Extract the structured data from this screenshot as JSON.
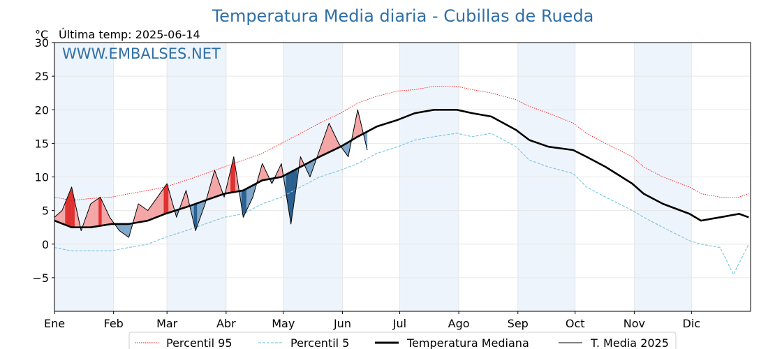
{
  "chart_data": {
    "type": "line",
    "title": "Temperatura Media diaria - Cubillas de Rueda",
    "unit_label": "°C",
    "subtitle": "Última temp: 2025-06-14",
    "watermark": "WWW.EMBALSES.NET",
    "ylim": [
      -10,
      30
    ],
    "yticks": [
      -5,
      0,
      5,
      10,
      15,
      20,
      25,
      30
    ],
    "ytick_labels": [
      "−5",
      "0",
      "5",
      "10",
      "15",
      "20",
      "25",
      "30"
    ],
    "month_labels": [
      "Ene",
      "Feb",
      "Mar",
      "Abr",
      "May",
      "Jun",
      "Jul",
      "Ago",
      "Sep",
      "Oct",
      "Nov",
      "Dic"
    ],
    "month_start_days": [
      1,
      32,
      60,
      91,
      121,
      152,
      182,
      213,
      244,
      274,
      305,
      335
    ],
    "grid": true,
    "legend_position": "bottom",
    "colors": {
      "p95": "#ff0000",
      "p5": "#7ec8e3",
      "median": "#000000",
      "current": "#000000",
      "above_fill": "#f4a6a6",
      "above_strong": "#e03030",
      "below_fill": "#7fa7c9",
      "below_strong": "#2a5f8f",
      "month_band": "#eef4fb",
      "title": "#2f6fa7"
    },
    "series": [
      {
        "name": "Percentil 95",
        "style": "dotted-red",
        "x": [
          1,
          10,
          20,
          31,
          40,
          50,
          59,
          70,
          80,
          90,
          100,
          110,
          120,
          130,
          140,
          151,
          160,
          170,
          181,
          190,
          200,
          212,
          220,
          230,
          243,
          250,
          260,
          273,
          280,
          290,
          304,
          310,
          320,
          334,
          340,
          350,
          360,
          365
        ],
        "y": [
          7,
          6.5,
          6.8,
          7,
          7.5,
          8,
          8.5,
          9.5,
          10.5,
          11.5,
          12.5,
          13.5,
          15,
          16.5,
          18,
          19.5,
          21,
          22,
          22.8,
          23,
          23.5,
          23.5,
          23,
          22.5,
          21.5,
          20.5,
          19.5,
          18,
          16.5,
          15,
          13,
          11.5,
          10,
          8.5,
          7.5,
          7,
          7,
          7.5
        ]
      },
      {
        "name": "Percentil 5",
        "style": "dashed-lightblue",
        "x": [
          1,
          10,
          20,
          31,
          40,
          50,
          59,
          70,
          80,
          90,
          100,
          110,
          120,
          130,
          140,
          151,
          160,
          170,
          181,
          190,
          200,
          212,
          220,
          230,
          243,
          250,
          260,
          273,
          280,
          290,
          304,
          310,
          320,
          334,
          340,
          350,
          357,
          365
        ],
        "y": [
          -0.5,
          -1,
          -1,
          -1,
          -0.5,
          0,
          1,
          2,
          3,
          4,
          4.5,
          6,
          7,
          8.5,
          10,
          11,
          12,
          13.5,
          14.5,
          15.5,
          16,
          16.5,
          16,
          16.5,
          14.5,
          12.5,
          11.5,
          10.5,
          8.5,
          7,
          5,
          4,
          2.5,
          0.5,
          0,
          -0.5,
          -4.5,
          0
        ]
      },
      {
        "name": "Temperatura Mediana",
        "style": "thick-black",
        "x": [
          1,
          10,
          20,
          31,
          40,
          50,
          59,
          70,
          80,
          90,
          100,
          110,
          120,
          130,
          140,
          151,
          160,
          170,
          181,
          190,
          200,
          212,
          220,
          230,
          243,
          250,
          260,
          273,
          280,
          290,
          304,
          310,
          320,
          334,
          340,
          350,
          360,
          365
        ],
        "y": [
          3.5,
          2.5,
          2.5,
          3,
          3,
          3.5,
          4.5,
          5.5,
          6.5,
          7.5,
          8,
          9.5,
          10,
          11.5,
          13,
          14.5,
          16,
          17.5,
          18.5,
          19.5,
          20,
          20,
          19.5,
          19,
          17,
          15.5,
          14.5,
          14,
          13,
          11.5,
          9,
          7.5,
          6,
          4.5,
          3.5,
          4,
          4.5,
          4
        ]
      },
      {
        "name": "T. Media 2025",
        "style": "thin-black",
        "x": [
          1,
          5,
          10,
          15,
          20,
          25,
          30,
          35,
          40,
          45,
          50,
          55,
          60,
          65,
          70,
          75,
          80,
          85,
          90,
          95,
          100,
          105,
          110,
          115,
          120,
          125,
          130,
          135,
          140,
          145,
          150,
          155,
          160,
          165
        ],
        "y": [
          4,
          5,
          8.5,
          2,
          6,
          7,
          4,
          2,
          1,
          6,
          5,
          7,
          9,
          4,
          8,
          2,
          6,
          11,
          7,
          13,
          4,
          7,
          12,
          9,
          12,
          3,
          13,
          10,
          14,
          18,
          15,
          13,
          20,
          14
        ]
      }
    ]
  }
}
